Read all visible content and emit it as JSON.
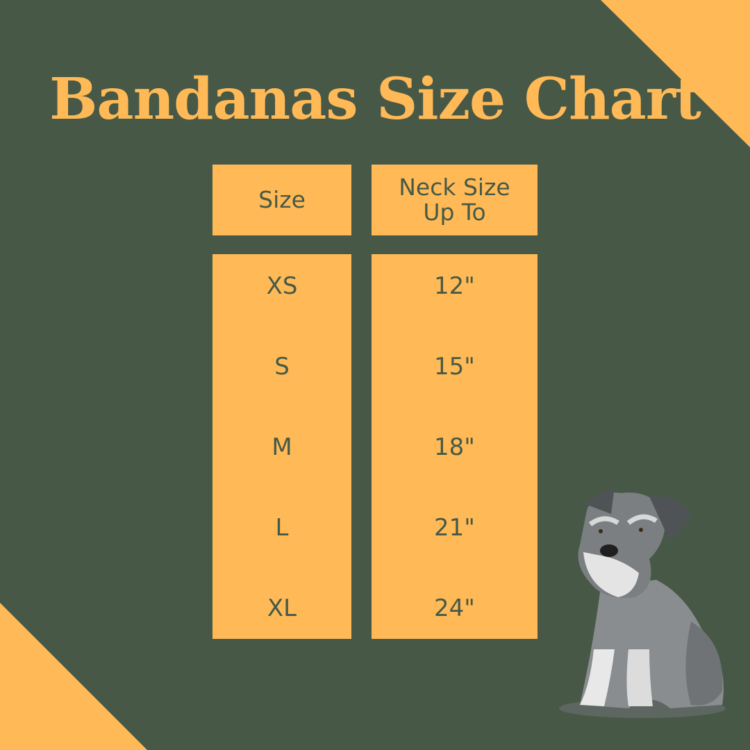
{
  "title": "Bandanas Size Chart",
  "colors": {
    "background": "#475946",
    "accent": "#FFBA57",
    "text": "#475946"
  },
  "table": {
    "headers": [
      "Size",
      "Neck Size Up To"
    ],
    "rows": [
      {
        "size": "XS",
        "neck": "12\""
      },
      {
        "size": "S",
        "neck": "15\""
      },
      {
        "size": "M",
        "neck": "18\""
      },
      {
        "size": "L",
        "neck": "21\""
      },
      {
        "size": "XL",
        "neck": "24\""
      }
    ]
  },
  "illustration": "schnauzer-dog"
}
